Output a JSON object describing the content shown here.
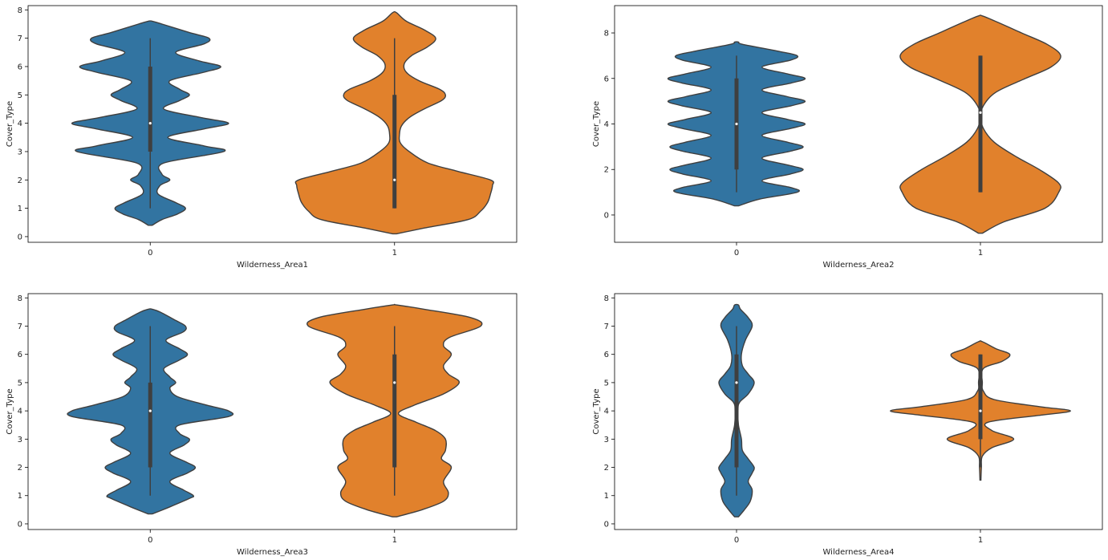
{
  "colors": {
    "violin_0": "#3274a1",
    "violin_1": "#e1812c",
    "outline": "#3f3f3f",
    "box": "#3f3f3f",
    "median": "#ffffff"
  },
  "chart_data": [
    {
      "type": "violin",
      "xlabel": "Wilderness_Area1",
      "ylabel": "Cover_Type",
      "ylim": [
        -0.2,
        8.15
      ],
      "yticks": [
        0,
        1,
        2,
        3,
        4,
        5,
        6,
        7,
        8
      ],
      "categories": [
        "0",
        "1"
      ],
      "violins": [
        {
          "category": "0",
          "min": 1,
          "q1": 3,
          "median": 4,
          "q3": 6,
          "max": 7,
          "density": [
            [
              0.4,
              0.02
            ],
            [
              0.6,
              0.12
            ],
            [
              0.8,
              0.28
            ],
            [
              1,
              0.36
            ],
            [
              1.2,
              0.26
            ],
            [
              1.5,
              0.08
            ],
            [
              1.8,
              0.1
            ],
            [
              2,
              0.2
            ],
            [
              2.2,
              0.12
            ],
            [
              2.6,
              0.14
            ],
            [
              3,
              0.75
            ],
            [
              3.2,
              0.55
            ],
            [
              3.5,
              0.18
            ],
            [
              3.8,
              0.55
            ],
            [
              4,
              0.8
            ],
            [
              4.2,
              0.52
            ],
            [
              4.5,
              0.14
            ],
            [
              4.8,
              0.3
            ],
            [
              5,
              0.4
            ],
            [
              5.2,
              0.3
            ],
            [
              5.5,
              0.2
            ],
            [
              5.8,
              0.55
            ],
            [
              6,
              0.72
            ],
            [
              6.2,
              0.5
            ],
            [
              6.5,
              0.26
            ],
            [
              6.8,
              0.55
            ],
            [
              7,
              0.6
            ],
            [
              7.2,
              0.4
            ],
            [
              7.5,
              0.12
            ],
            [
              7.6,
              0.02
            ]
          ]
        },
        {
          "category": "1",
          "min": 1,
          "q1": 1,
          "median": 2,
          "q3": 5,
          "max": 7,
          "density": [
            [
              0.1,
              0.02
            ],
            [
              0.3,
              0.3
            ],
            [
              0.6,
              0.75
            ],
            [
              0.9,
              0.88
            ],
            [
              1.2,
              0.95
            ],
            [
              1.5,
              0.98
            ],
            [
              1.8,
              1
            ],
            [
              2,
              0.98
            ],
            [
              2.3,
              0.65
            ],
            [
              2.6,
              0.34
            ],
            [
              3,
              0.15
            ],
            [
              3.3,
              0.06
            ],
            [
              3.6,
              0.05
            ],
            [
              3.9,
              0.07
            ],
            [
              4.2,
              0.15
            ],
            [
              4.5,
              0.3
            ],
            [
              4.8,
              0.48
            ],
            [
              5,
              0.52
            ],
            [
              5.2,
              0.46
            ],
            [
              5.5,
              0.25
            ],
            [
              5.8,
              0.12
            ],
            [
              6.1,
              0.1
            ],
            [
              6.4,
              0.18
            ],
            [
              6.7,
              0.34
            ],
            [
              7,
              0.42
            ],
            [
              7.3,
              0.3
            ],
            [
              7.6,
              0.12
            ],
            [
              7.9,
              0.02
            ]
          ]
        }
      ]
    },
    {
      "type": "violin",
      "xlabel": "Wilderness_Area2",
      "ylabel": "Cover_Type",
      "ylim": [
        -1.2,
        9.2
      ],
      "yticks": [
        0,
        2,
        4,
        6,
        8
      ],
      "categories": [
        "0",
        "1"
      ],
      "violins": [
        {
          "category": "0",
          "min": 1,
          "q1": 2,
          "median": 4,
          "q3": 6,
          "max": 7,
          "density": [
            [
              0.4,
              0.02
            ],
            [
              0.7,
              0.24
            ],
            [
              1,
              0.62
            ],
            [
              1.2,
              0.56
            ],
            [
              1.5,
              0.26
            ],
            [
              1.8,
              0.55
            ],
            [
              2,
              0.68
            ],
            [
              2.2,
              0.52
            ],
            [
              2.5,
              0.26
            ],
            [
              2.8,
              0.55
            ],
            [
              3,
              0.68
            ],
            [
              3.2,
              0.52
            ],
            [
              3.5,
              0.26
            ],
            [
              3.8,
              0.55
            ],
            [
              4,
              0.7
            ],
            [
              4.2,
              0.52
            ],
            [
              4.5,
              0.26
            ],
            [
              4.8,
              0.56
            ],
            [
              5,
              0.7
            ],
            [
              5.2,
              0.52
            ],
            [
              5.5,
              0.26
            ],
            [
              5.8,
              0.56
            ],
            [
              6,
              0.7
            ],
            [
              6.2,
              0.52
            ],
            [
              6.5,
              0.26
            ],
            [
              6.8,
              0.55
            ],
            [
              7,
              0.62
            ],
            [
              7.2,
              0.42
            ],
            [
              7.5,
              0.06
            ],
            [
              7.6,
              0.02
            ]
          ]
        },
        {
          "category": "1",
          "min": 1,
          "q1": 1,
          "median": 4.5,
          "q3": 7,
          "max": 7,
          "density": [
            [
              -0.8,
              0.02
            ],
            [
              -0.3,
              0.24
            ],
            [
              0.3,
              0.66
            ],
            [
              1,
              0.8
            ],
            [
              1.4,
              0.8
            ],
            [
              2,
              0.6
            ],
            [
              2.6,
              0.35
            ],
            [
              3.2,
              0.14
            ],
            [
              3.8,
              0.03
            ],
            [
              4.3,
              0.005
            ],
            [
              4.8,
              0.03
            ],
            [
              5.4,
              0.16
            ],
            [
              6,
              0.46
            ],
            [
              6.5,
              0.72
            ],
            [
              7,
              0.82
            ],
            [
              7.5,
              0.68
            ],
            [
              8,
              0.42
            ],
            [
              8.5,
              0.16
            ],
            [
              8.75,
              0.02
            ]
          ]
        }
      ]
    },
    {
      "type": "violin",
      "xlabel": "Wilderness_Area3",
      "ylabel": "Cover_Type",
      "ylim": [
        -0.2,
        8.15
      ],
      "yticks": [
        0,
        1,
        2,
        3,
        4,
        5,
        6,
        7,
        8
      ],
      "categories": [
        "0",
        "1"
      ],
      "violins": [
        {
          "category": "0",
          "min": 1,
          "q1": 2,
          "median": 4,
          "q3": 5,
          "max": 7,
          "density": [
            [
              0.35,
              0.02
            ],
            [
              0.6,
              0.2
            ],
            [
              0.9,
              0.4
            ],
            [
              1,
              0.44
            ],
            [
              1.2,
              0.34
            ],
            [
              1.5,
              0.2
            ],
            [
              1.8,
              0.38
            ],
            [
              2,
              0.46
            ],
            [
              2.2,
              0.36
            ],
            [
              2.5,
              0.2
            ],
            [
              2.8,
              0.35
            ],
            [
              3,
              0.4
            ],
            [
              3.2,
              0.3
            ],
            [
              3.5,
              0.3
            ],
            [
              3.8,
              0.8
            ],
            [
              4,
              0.8
            ],
            [
              4.2,
              0.58
            ],
            [
              4.5,
              0.28
            ],
            [
              4.8,
              0.2
            ],
            [
              5,
              0.26
            ],
            [
              5.2,
              0.2
            ],
            [
              5.5,
              0.14
            ],
            [
              5.8,
              0.3
            ],
            [
              6,
              0.38
            ],
            [
              6.2,
              0.3
            ],
            [
              6.5,
              0.16
            ],
            [
              6.8,
              0.34
            ],
            [
              7,
              0.36
            ],
            [
              7.2,
              0.26
            ],
            [
              7.5,
              0.1
            ],
            [
              7.6,
              0.02
            ]
          ]
        },
        {
          "category": "1",
          "min": 1,
          "q1": 2,
          "median": 5,
          "q3": 6,
          "max": 7,
          "density": [
            [
              0.25,
              0.02
            ],
            [
              0.5,
              0.28
            ],
            [
              0.8,
              0.5
            ],
            [
              1.1,
              0.55
            ],
            [
              1.5,
              0.5
            ],
            [
              2,
              0.58
            ],
            [
              2.3,
              0.48
            ],
            [
              2.6,
              0.52
            ],
            [
              3,
              0.52
            ],
            [
              3.3,
              0.42
            ],
            [
              3.6,
              0.22
            ],
            [
              3.9,
              0.04
            ],
            [
              4.2,
              0.2
            ],
            [
              4.6,
              0.5
            ],
            [
              5,
              0.66
            ],
            [
              5.3,
              0.55
            ],
            [
              5.6,
              0.5
            ],
            [
              6,
              0.58
            ],
            [
              6.3,
              0.5
            ],
            [
              6.6,
              0.56
            ],
            [
              7,
              0.88
            ],
            [
              7.3,
              0.78
            ],
            [
              7.6,
              0.3
            ],
            [
              7.75,
              0.02
            ]
          ]
        }
      ]
    },
    {
      "type": "violin",
      "xlabel": "Wilderness_Area4",
      "ylabel": "Cover_Type",
      "ylim": [
        -0.2,
        8.15
      ],
      "yticks": [
        0,
        1,
        2,
        3,
        4,
        5,
        6,
        7,
        8
      ],
      "categories": [
        "0",
        "1"
      ],
      "violins": [
        {
          "category": "0",
          "min": 1,
          "q1": 2,
          "median": 5,
          "q3": 6,
          "max": 7,
          "density": [
            [
              0.25,
              0.02
            ],
            [
              0.5,
              0.08
            ],
            [
              0.8,
              0.14
            ],
            [
              1.2,
              0.16
            ],
            [
              1.5,
              0.12
            ],
            [
              1.8,
              0.16
            ],
            [
              2,
              0.18
            ],
            [
              2.3,
              0.12
            ],
            [
              2.6,
              0.06
            ],
            [
              3,
              0.05
            ],
            [
              3.5,
              0.02
            ],
            [
              4,
              0.015
            ],
            [
              4.3,
              0.03
            ],
            [
              4.6,
              0.12
            ],
            [
              5,
              0.18
            ],
            [
              5.3,
              0.12
            ],
            [
              5.6,
              0.06
            ],
            [
              6,
              0.05
            ],
            [
              6.5,
              0.09
            ],
            [
              7,
              0.16
            ],
            [
              7.3,
              0.12
            ],
            [
              7.6,
              0.04
            ],
            [
              7.75,
              0.02
            ]
          ]
        },
        {
          "category": "1",
          "min": 2,
          "q1": 3,
          "median": 4,
          "q3": 6,
          "max": 6,
          "density": [
            [
              1.55,
              0.005
            ],
            [
              2,
              0.01
            ],
            [
              2.4,
              0.02
            ],
            [
              2.7,
              0.12
            ],
            [
              3,
              0.34
            ],
            [
              3.3,
              0.12
            ],
            [
              3.6,
              0.08
            ],
            [
              3.85,
              0.62
            ],
            [
              4,
              0.92
            ],
            [
              4.15,
              0.6
            ],
            [
              4.4,
              0.14
            ],
            [
              4.7,
              0.03
            ],
            [
              5,
              0.02
            ],
            [
              5.5,
              0.03
            ],
            [
              5.75,
              0.22
            ],
            [
              6,
              0.3
            ],
            [
              6.2,
              0.16
            ],
            [
              6.45,
              0.02
            ]
          ]
        }
      ]
    }
  ]
}
